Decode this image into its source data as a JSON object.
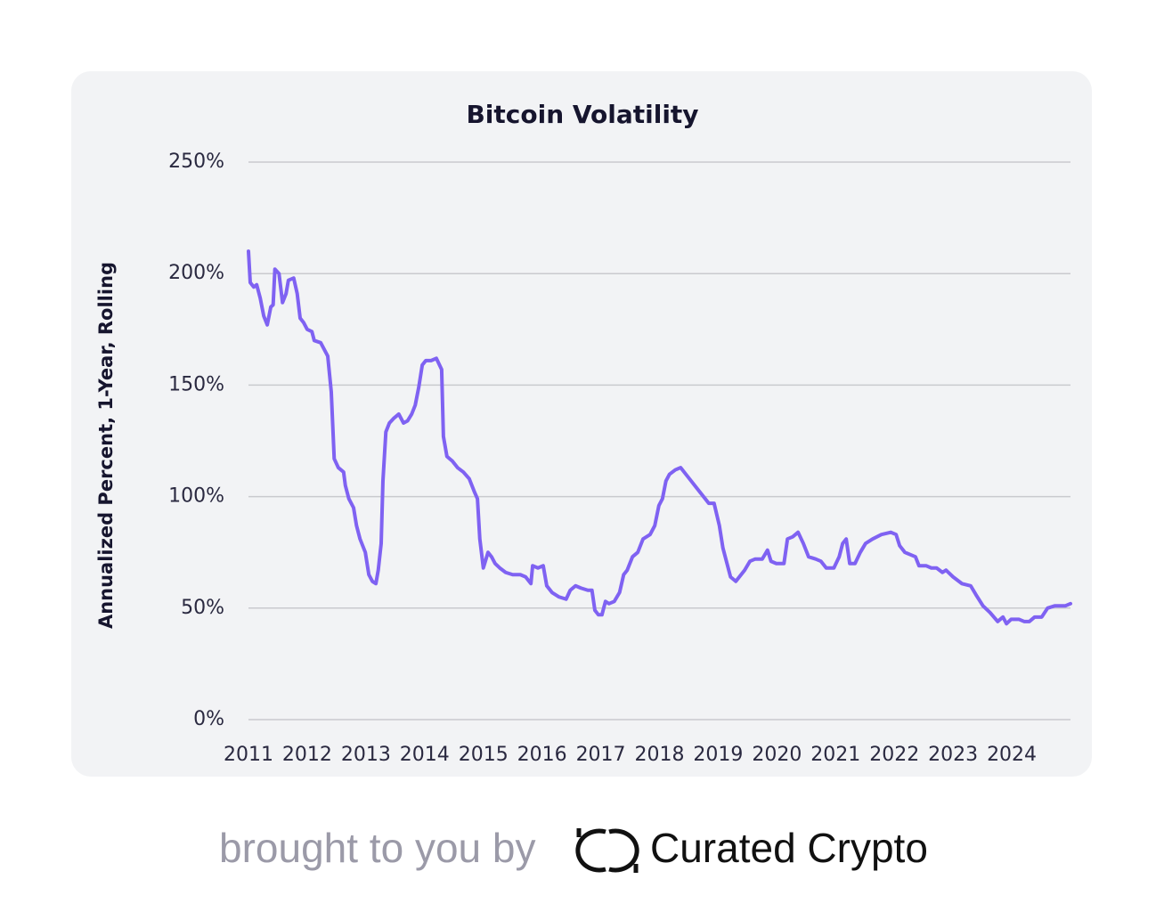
{
  "chart_data": {
    "type": "line",
    "title": "Bitcoin Volatility",
    "ylabel": "Annualized Percent, 1-Year, Rolling",
    "color": "#7f62f2",
    "xlim": [
      2011,
      2025
    ],
    "xticks": [
      2011,
      2012,
      2013,
      2014,
      2015,
      2016,
      2017,
      2018,
      2019,
      2020,
      2021,
      2022,
      2023,
      2024
    ],
    "ylim": [
      0,
      250
    ],
    "yticks": [
      {
        "value": 0,
        "label": "0%"
      },
      {
        "value": 50,
        "label": "50%"
      },
      {
        "value": 100,
        "label": "100%"
      },
      {
        "value": 150,
        "label": "150%"
      },
      {
        "value": 200,
        "label": "200%"
      },
      {
        "value": 250,
        "label": "250%"
      }
    ],
    "grid": true,
    "x": [
      2011.0,
      2011.03,
      2011.09,
      2011.14,
      2011.2,
      2011.26,
      2011.32,
      2011.38,
      2011.42,
      2011.45,
      2011.52,
      2011.58,
      2011.64,
      2011.68,
      2011.77,
      2011.83,
      2011.88,
      2011.94,
      2012.0,
      2012.08,
      2012.12,
      2012.23,
      2012.29,
      2012.35,
      2012.41,
      2012.46,
      2012.53,
      2012.62,
      2012.65,
      2012.71,
      2012.79,
      2012.84,
      2012.9,
      2012.99,
      2013.05,
      2013.11,
      2013.17,
      2013.21,
      2013.26,
      2013.29,
      2013.34,
      2013.4,
      2013.47,
      2013.56,
      2013.64,
      2013.71,
      2013.78,
      2013.84,
      2013.9,
      2013.96,
      2014.02,
      2014.11,
      2014.2,
      2014.29,
      2014.32,
      2014.38,
      2014.47,
      2014.56,
      2014.66,
      2014.76,
      2014.85,
      2014.9,
      2014.94,
      2015.0,
      2015.08,
      2015.14,
      2015.2,
      2015.28,
      2015.38,
      2015.5,
      2015.63,
      2015.72,
      2015.81,
      2015.84,
      2015.93,
      2016.02,
      2016.08,
      2016.17,
      2016.29,
      2016.41,
      2016.48,
      2016.57,
      2016.66,
      2016.78,
      2016.85,
      2016.9,
      2016.96,
      2017.02,
      2017.08,
      2017.14,
      2017.23,
      2017.32,
      2017.39,
      2017.45,
      2017.54,
      2017.63,
      2017.72,
      2017.84,
      2017.92,
      2017.99,
      2018.05,
      2018.11,
      2018.17,
      2018.27,
      2018.36,
      2018.45,
      2018.54,
      2018.63,
      2018.72,
      2018.84,
      2018.93,
      2019.02,
      2019.08,
      2019.14,
      2019.21,
      2019.3,
      2019.39,
      2019.45,
      2019.54,
      2019.63,
      2019.75,
      2019.84,
      2019.9,
      2019.99,
      2020.12,
      2020.18,
      2020.27,
      2020.36,
      2020.45,
      2020.54,
      2020.66,
      2020.75,
      2020.84,
      2020.97,
      2021.06,
      2021.12,
      2021.18,
      2021.24,
      2021.33,
      2021.42,
      2021.51,
      2021.63,
      2021.78,
      2021.94,
      2022.03,
      2022.09,
      2022.18,
      2022.27,
      2022.36,
      2022.42,
      2022.54,
      2022.63,
      2022.72,
      2022.82,
      2022.88,
      2023.0,
      2023.15,
      2023.3,
      2023.39,
      2023.51,
      2023.63,
      2023.76,
      2023.85,
      2023.91,
      2023.99,
      2024.12,
      2024.21,
      2024.3,
      2024.39,
      2024.51,
      2024.61,
      2024.73,
      2024.82,
      2024.91,
      2025.0
    ],
    "values": [
      210,
      196,
      194,
      195,
      189,
      181,
      177,
      185,
      186,
      202,
      200,
      187,
      191,
      197,
      198,
      191,
      180,
      178,
      175,
      174,
      170,
      169,
      166,
      163,
      147,
      117,
      113,
      111,
      105,
      99,
      95,
      87,
      81,
      75,
      65,
      62,
      61,
      67,
      79,
      107,
      129,
      133,
      135,
      137,
      133,
      134,
      137,
      141,
      149,
      159,
      161,
      161,
      162,
      157,
      127,
      118,
      116,
      113,
      111,
      108,
      102,
      99,
      81,
      68,
      75,
      73,
      70,
      68,
      66,
      65,
      65,
      64,
      61,
      69,
      68,
      69,
      60,
      57,
      55,
      54,
      58,
      60,
      59,
      58,
      58,
      49,
      47,
      47,
      53,
      52,
      53,
      57,
      65,
      67,
      73,
      75,
      81,
      83,
      87,
      96,
      99,
      107,
      110,
      112,
      113,
      110,
      107,
      104,
      101,
      97,
      97,
      87,
      77,
      71,
      64,
      62,
      65,
      67,
      71,
      72,
      72,
      76,
      71,
      70,
      70,
      81,
      82,
      84,
      79,
      73,
      72,
      71,
      68,
      68,
      73,
      79,
      81,
      70,
      70,
      75,
      79,
      81,
      83,
      84,
      83,
      78,
      75,
      74,
      73,
      69,
      69,
      68,
      68,
      66,
      67,
      64,
      61,
      60,
      56,
      51,
      48,
      44,
      46,
      43,
      45,
      45,
      44,
      44,
      46,
      46,
      50,
      51,
      51,
      51,
      52
    ]
  },
  "footer": {
    "text": "brought to you by",
    "brand": "Curated Crypto"
  }
}
